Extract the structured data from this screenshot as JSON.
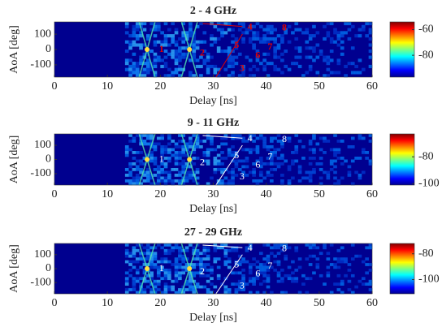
{
  "chart_data": [
    {
      "type": "heatmap",
      "title": "2 - 4 GHz",
      "xlabel": "Delay [ns]",
      "ylabel": "AoA [deg]",
      "xlim": [
        0,
        60
      ],
      "xticks": [
        0,
        10,
        20,
        30,
        40,
        50,
        60
      ],
      "ylim": [
        -180,
        180
      ],
      "yticks": [
        -100,
        0,
        100
      ],
      "clim": [
        -97,
        -54
      ],
      "cticks": [
        -80,
        -60
      ],
      "annotations": [
        "1",
        "2",
        "3",
        "4",
        "5",
        "6",
        "7",
        "8"
      ],
      "annotation_color": "#e00000"
    },
    {
      "type": "heatmap",
      "title": "9 - 11 GHz",
      "xlabel": "Delay [ns]",
      "ylabel": "AoA [deg]",
      "xlim": [
        0,
        60
      ],
      "xticks": [
        0,
        10,
        20,
        30,
        40,
        50,
        60
      ],
      "ylim": [
        -180,
        180
      ],
      "yticks": [
        -100,
        0,
        100
      ],
      "clim": [
        -101,
        -63
      ],
      "cticks": [
        -100,
        -80
      ],
      "annotations": [
        "1",
        "2",
        "3",
        "4",
        "5",
        "6",
        "7",
        "8"
      ],
      "annotation_color": "#ffffff"
    },
    {
      "type": "heatmap",
      "title": "27 - 29 GHz",
      "xlabel": "Delay [ns]",
      "ylabel": "AoA [deg]",
      "xlim": [
        0,
        60
      ],
      "xticks": [
        0,
        10,
        20,
        30,
        40,
        50,
        60
      ],
      "ylim": [
        -180,
        180
      ],
      "yticks": [
        -100,
        0,
        100
      ],
      "clim": [
        -111,
        -72
      ],
      "cticks": [
        -100,
        -80
      ],
      "annotations": [
        "1",
        "2",
        "3",
        "4",
        "5",
        "6",
        "7",
        "8"
      ],
      "annotation_color": "#ffffff"
    }
  ]
}
